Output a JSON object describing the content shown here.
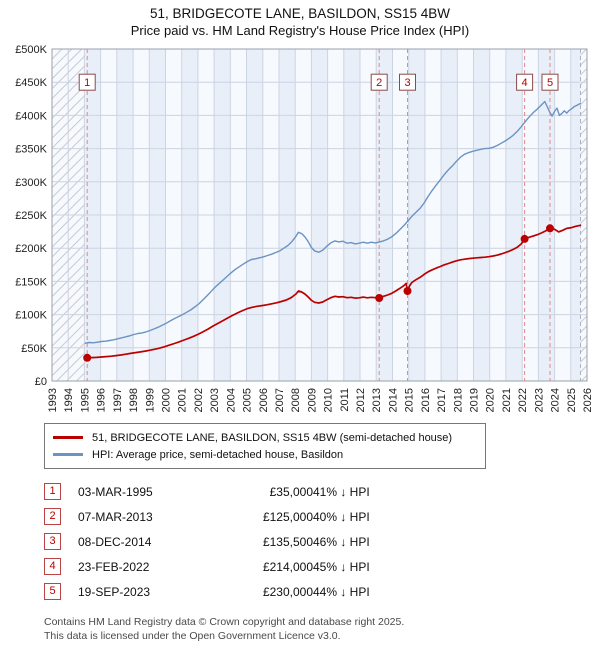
{
  "title": {
    "line1": "51, BRIDGECOTE LANE, BASILDON, SS15 4BW",
    "line2": "Price paid vs. HM Land Registry's House Price Index (HPI)"
  },
  "chart_data": {
    "type": "line",
    "title": "51, BRIDGECOTE LANE, BASILDON, SS15 4BW",
    "subtitle": "Price paid vs. HM Land Registry's House Price Index (HPI)",
    "x_range": [
      1993,
      2026
    ],
    "y_range": [
      0,
      500000
    ],
    "x_ticks": [
      1993,
      1994,
      1995,
      1996,
      1997,
      1998,
      1999,
      2000,
      2001,
      2002,
      2003,
      2004,
      2005,
      2006,
      2007,
      2008,
      2009,
      2010,
      2011,
      2012,
      2013,
      2014,
      2015,
      2016,
      2017,
      2018,
      2019,
      2020,
      2021,
      2022,
      2023,
      2024,
      2025,
      2026
    ],
    "y_ticks": [
      0,
      50000,
      100000,
      150000,
      200000,
      250000,
      300000,
      350000,
      400000,
      450000,
      500000
    ],
    "y_tick_labels": [
      "£0",
      "£50K",
      "£100K",
      "£150K",
      "£200K",
      "£250K",
      "£300K",
      "£350K",
      "£400K",
      "£450K",
      "£500K"
    ],
    "grid": true,
    "legend_position": "below",
    "data_start_x": 1995.05,
    "data_end_x": 2025.6,
    "marker_y": 450000,
    "series": [
      {
        "name": "51, BRIDGECOTE LANE, BASILDON, SS15 4BW (semi-detached house)",
        "color": "#bb0000",
        "width": 1.7,
        "points": [
          [
            1995.05,
            34800
          ],
          [
            1995.17,
            35000
          ],
          [
            1995.45,
            35200
          ],
          [
            1995.75,
            35600
          ],
          [
            1996.05,
            36200
          ],
          [
            1996.35,
            36800
          ],
          [
            1996.65,
            37400
          ],
          [
            1996.95,
            38200
          ],
          [
            1997.25,
            39200
          ],
          [
            1997.55,
            40300
          ],
          [
            1997.85,
            41500
          ],
          [
            1998.15,
            42800
          ],
          [
            1998.45,
            43900
          ],
          [
            1998.75,
            45100
          ],
          [
            1999.05,
            46400
          ],
          [
            1999.35,
            47900
          ],
          [
            1999.65,
            49600
          ],
          [
            1999.95,
            51600
          ],
          [
            2000.25,
            54000
          ],
          [
            2000.55,
            56500
          ],
          [
            2000.85,
            59000
          ],
          [
            2001.15,
            61800
          ],
          [
            2001.45,
            64500
          ],
          [
            2001.75,
            67500
          ],
          [
            2002.05,
            70800
          ],
          [
            2002.35,
            74500
          ],
          [
            2002.65,
            78500
          ],
          [
            2002.95,
            83000
          ],
          [
            2003.25,
            87000
          ],
          [
            2003.55,
            91000
          ],
          [
            2003.85,
            95000
          ],
          [
            2004.15,
            99000
          ],
          [
            2004.45,
            102500
          ],
          [
            2004.75,
            106000
          ],
          [
            2005.05,
            109000
          ],
          [
            2005.35,
            111000
          ],
          [
            2005.65,
            112500
          ],
          [
            2005.95,
            113500
          ],
          [
            2006.25,
            114800
          ],
          [
            2006.55,
            116200
          ],
          [
            2006.85,
            117800
          ],
          [
            2007.15,
            119800
          ],
          [
            2007.45,
            122000
          ],
          [
            2007.75,
            125500
          ],
          [
            2008.05,
            131000
          ],
          [
            2008.2,
            135500
          ],
          [
            2008.4,
            134000
          ],
          [
            2008.6,
            131000
          ],
          [
            2008.8,
            126500
          ],
          [
            2009.0,
            121500
          ],
          [
            2009.2,
            118500
          ],
          [
            2009.45,
            117500
          ],
          [
            2009.7,
            119000
          ],
          [
            2009.95,
            122500
          ],
          [
            2010.2,
            125500
          ],
          [
            2010.45,
            127500
          ],
          [
            2010.7,
            126500
          ],
          [
            2010.95,
            127000
          ],
          [
            2011.2,
            125500
          ],
          [
            2011.45,
            126000
          ],
          [
            2011.7,
            124800
          ],
          [
            2011.95,
            125300
          ],
          [
            2012.2,
            126300
          ],
          [
            2012.45,
            125300
          ],
          [
            2012.7,
            126000
          ],
          [
            2012.95,
            125500
          ],
          [
            2013.18,
            125000
          ],
          [
            2013.45,
            127500
          ],
          [
            2013.7,
            129500
          ],
          [
            2013.95,
            132000
          ],
          [
            2014.2,
            135500
          ],
          [
            2014.45,
            139500
          ],
          [
            2014.7,
            143500
          ],
          [
            2014.85,
            147000
          ],
          [
            2014.93,
            135500
          ],
          [
            2015.05,
            143000
          ],
          [
            2015.2,
            148500
          ],
          [
            2015.45,
            152500
          ],
          [
            2015.7,
            156000
          ],
          [
            2015.95,
            160500
          ],
          [
            2016.2,
            164500
          ],
          [
            2016.45,
            167500
          ],
          [
            2016.7,
            170000
          ],
          [
            2016.95,
            172500
          ],
          [
            2017.2,
            175000
          ],
          [
            2017.45,
            177000
          ],
          [
            2017.7,
            179000
          ],
          [
            2017.95,
            181000
          ],
          [
            2018.2,
            182500
          ],
          [
            2018.45,
            183500
          ],
          [
            2018.7,
            184300
          ],
          [
            2018.95,
            185000
          ],
          [
            2019.2,
            185500
          ],
          [
            2019.45,
            186000
          ],
          [
            2019.7,
            186500
          ],
          [
            2019.95,
            187200
          ],
          [
            2020.2,
            188200
          ],
          [
            2020.45,
            189500
          ],
          [
            2020.7,
            191200
          ],
          [
            2020.95,
            193200
          ],
          [
            2021.2,
            195500
          ],
          [
            2021.45,
            198200
          ],
          [
            2021.7,
            201500
          ],
          [
            2021.95,
            206500
          ],
          [
            2022.15,
            214000
          ],
          [
            2022.45,
            216500
          ],
          [
            2022.7,
            218500
          ],
          [
            2022.95,
            220500
          ],
          [
            2023.2,
            223000
          ],
          [
            2023.45,
            226000
          ],
          [
            2023.72,
            230000
          ],
          [
            2024.0,
            228500
          ],
          [
            2024.25,
            224500
          ],
          [
            2024.5,
            227000
          ],
          [
            2024.75,
            229800
          ],
          [
            2025.05,
            231000
          ],
          [
            2025.3,
            233000
          ],
          [
            2025.6,
            234500
          ]
        ]
      },
      {
        "name": "HPI: Average price, semi-detached house, Basildon",
        "color": "#6b93c4",
        "width": 1.4,
        "points": [
          [
            1995.05,
            57000
          ],
          [
            1995.3,
            58000
          ],
          [
            1995.55,
            57500
          ],
          [
            1995.8,
            58500
          ],
          [
            1996.05,
            59500
          ],
          [
            1996.3,
            60000
          ],
          [
            1996.55,
            61000
          ],
          [
            1996.8,
            62000
          ],
          [
            1997.05,
            63500
          ],
          [
            1997.3,
            65000
          ],
          [
            1997.55,
            66500
          ],
          [
            1997.8,
            68000
          ],
          [
            1998.05,
            70000
          ],
          [
            1998.3,
            71500
          ],
          [
            1998.55,
            72500
          ],
          [
            1998.8,
            74000
          ],
          [
            1999.05,
            76000
          ],
          [
            1999.3,
            78500
          ],
          [
            1999.55,
            81000
          ],
          [
            1999.8,
            84000
          ],
          [
            2000.05,
            87000
          ],
          [
            2000.3,
            90500
          ],
          [
            2000.55,
            94000
          ],
          [
            2000.8,
            97000
          ],
          [
            2001.05,
            100000
          ],
          [
            2001.3,
            103500
          ],
          [
            2001.55,
            107000
          ],
          [
            2001.8,
            111500
          ],
          [
            2002.05,
            116000
          ],
          [
            2002.3,
            122000
          ],
          [
            2002.55,
            128000
          ],
          [
            2002.8,
            134500
          ],
          [
            2003.05,
            141000
          ],
          [
            2003.3,
            146500
          ],
          [
            2003.55,
            152000
          ],
          [
            2003.8,
            157500
          ],
          [
            2004.05,
            163000
          ],
          [
            2004.3,
            168000
          ],
          [
            2004.55,
            172000
          ],
          [
            2004.8,
            176000
          ],
          [
            2005.05,
            180000
          ],
          [
            2005.3,
            183000
          ],
          [
            2005.55,
            184000
          ],
          [
            2005.8,
            185500
          ],
          [
            2006.05,
            187000
          ],
          [
            2006.3,
            189000
          ],
          [
            2006.55,
            191000
          ],
          [
            2006.8,
            193500
          ],
          [
            2007.05,
            196000
          ],
          [
            2007.3,
            200000
          ],
          [
            2007.55,
            204000
          ],
          [
            2007.8,
            210000
          ],
          [
            2008.05,
            218000
          ],
          [
            2008.2,
            224000
          ],
          [
            2008.4,
            222000
          ],
          [
            2008.6,
            217000
          ],
          [
            2008.8,
            210000
          ],
          [
            2009.0,
            201000
          ],
          [
            2009.2,
            196000
          ],
          [
            2009.45,
            194000
          ],
          [
            2009.7,
            197000
          ],
          [
            2009.95,
            203000
          ],
          [
            2010.2,
            208000
          ],
          [
            2010.45,
            211000
          ],
          [
            2010.7,
            209500
          ],
          [
            2010.95,
            210500
          ],
          [
            2011.2,
            207500
          ],
          [
            2011.45,
            208500
          ],
          [
            2011.7,
            206500
          ],
          [
            2011.95,
            207500
          ],
          [
            2012.2,
            209000
          ],
          [
            2012.45,
            207500
          ],
          [
            2012.7,
            209000
          ],
          [
            2012.95,
            208000
          ],
          [
            2013.2,
            209500
          ],
          [
            2013.45,
            211000
          ],
          [
            2013.7,
            213500
          ],
          [
            2013.95,
            217000
          ],
          [
            2014.2,
            222000
          ],
          [
            2014.45,
            228000
          ],
          [
            2014.7,
            234000
          ],
          [
            2014.95,
            241000
          ],
          [
            2015.2,
            248000
          ],
          [
            2015.45,
            254000
          ],
          [
            2015.7,
            260000
          ],
          [
            2015.95,
            268000
          ],
          [
            2016.2,
            278000
          ],
          [
            2016.45,
            287000
          ],
          [
            2016.7,
            295000
          ],
          [
            2016.95,
            303000
          ],
          [
            2017.2,
            311000
          ],
          [
            2017.45,
            318000
          ],
          [
            2017.7,
            324000
          ],
          [
            2017.95,
            331000
          ],
          [
            2018.2,
            337000
          ],
          [
            2018.45,
            341500
          ],
          [
            2018.7,
            344000
          ],
          [
            2018.95,
            346000
          ],
          [
            2019.2,
            347500
          ],
          [
            2019.45,
            349000
          ],
          [
            2019.7,
            350000
          ],
          [
            2019.95,
            350500
          ],
          [
            2020.2,
            352000
          ],
          [
            2020.45,
            354500
          ],
          [
            2020.7,
            358000
          ],
          [
            2020.95,
            361500
          ],
          [
            2021.2,
            365500
          ],
          [
            2021.45,
            370000
          ],
          [
            2021.7,
            376000
          ],
          [
            2021.95,
            383000
          ],
          [
            2022.2,
            391000
          ],
          [
            2022.45,
            398000
          ],
          [
            2022.7,
            404500
          ],
          [
            2022.95,
            410000
          ],
          [
            2023.2,
            416000
          ],
          [
            2023.4,
            421000
          ],
          [
            2023.55,
            413000
          ],
          [
            2023.7,
            405000
          ],
          [
            2023.85,
            399000
          ],
          [
            2024.0,
            406000
          ],
          [
            2024.15,
            411000
          ],
          [
            2024.3,
            400000
          ],
          [
            2024.45,
            403000
          ],
          [
            2024.6,
            407000
          ],
          [
            2024.75,
            403500
          ],
          [
            2024.9,
            407500
          ],
          [
            2025.05,
            410000
          ],
          [
            2025.2,
            413000
          ],
          [
            2025.4,
            415500
          ],
          [
            2025.6,
            418000
          ]
        ]
      }
    ],
    "sales": [
      {
        "n": 1,
        "x": 1995.17,
        "y": 35000
      },
      {
        "n": 2,
        "x": 2013.18,
        "y": 125000
      },
      {
        "n": 3,
        "x": 2014.93,
        "y": 135500
      },
      {
        "n": 4,
        "x": 2022.15,
        "y": 214000
      },
      {
        "n": 5,
        "x": 2023.72,
        "y": 230000
      }
    ]
  },
  "sales_table": {
    "rows": [
      {
        "n": "1",
        "date": "03-MAR-1995",
        "price": "£35,000",
        "hpi": "41% ↓ HPI"
      },
      {
        "n": "2",
        "date": "07-MAR-2013",
        "price": "£125,000",
        "hpi": "40% ↓ HPI"
      },
      {
        "n": "3",
        "date": "08-DEC-2014",
        "price": "£135,500",
        "hpi": "46% ↓ HPI"
      },
      {
        "n": "4",
        "date": "23-FEB-2022",
        "price": "£214,000",
        "hpi": "45% ↓ HPI"
      },
      {
        "n": "5",
        "date": "19-SEP-2023",
        "price": "£230,000",
        "hpi": "44% ↓ HPI"
      }
    ]
  },
  "footer": {
    "line1": "Contains HM Land Registry data © Crown copyright and database right 2025.",
    "line2": "This data is licensed under the Open Government Licence v3.0."
  }
}
